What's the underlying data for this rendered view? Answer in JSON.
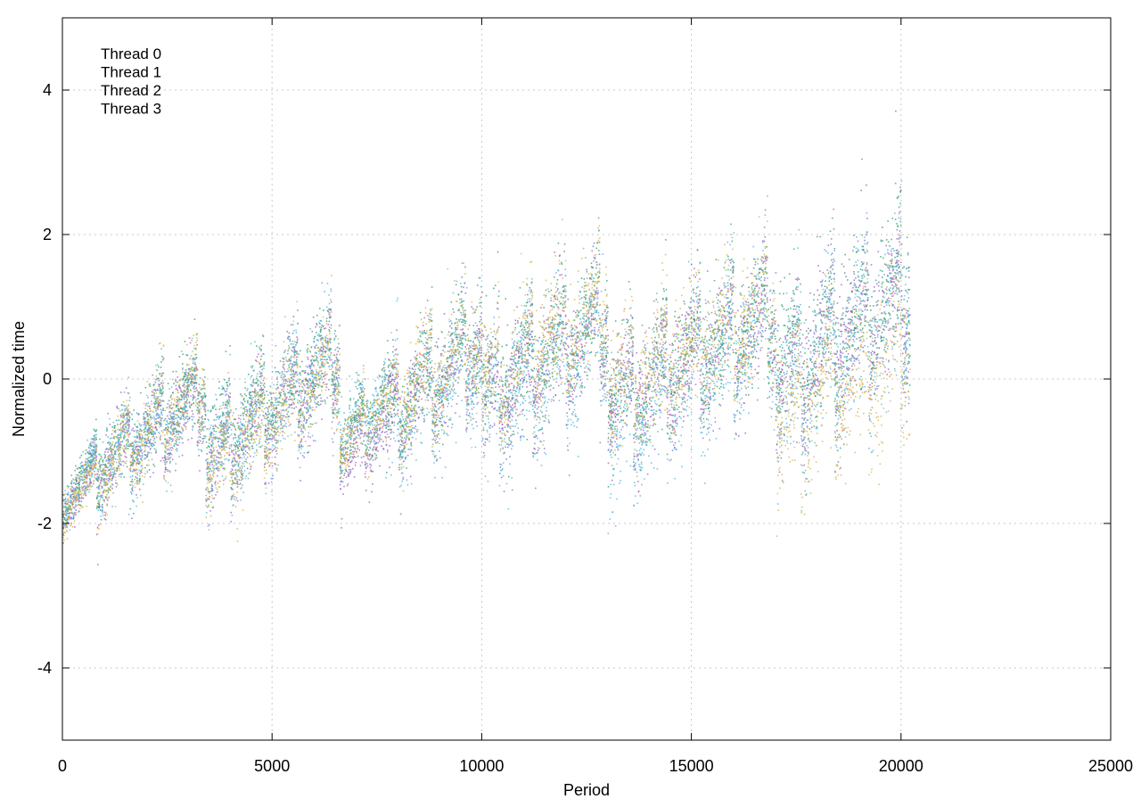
{
  "chart_data": {
    "type": "scatter",
    "title": "",
    "xlabel": "Period",
    "ylabel": "Normalized time",
    "xlim": [
      0,
      25000
    ],
    "ylim": [
      -5,
      5
    ],
    "x_ticks": [
      0,
      5000,
      10000,
      15000,
      20000,
      25000
    ],
    "y_ticks": [
      -4,
      -2,
      0,
      2,
      4
    ],
    "x_tick_labels": [
      "0",
      "5000",
      "10000",
      "15000",
      "20000",
      "25000"
    ],
    "y_tick_labels": [
      "-4",
      "-2",
      "0",
      "2",
      "4"
    ],
    "grid": true,
    "legend_position": "top-left",
    "series": [
      {
        "name": "Thread 0",
        "color": "#9b59c6",
        "summary": {
          "x_range": [
            0,
            20200
          ],
          "segments": [
            {
              "x_start": 0,
              "x_end": 800,
              "y_start": -1.8,
              "y_end": -1.2,
              "spread": 0.35
            },
            {
              "x_start": 800,
              "x_end": 3400,
              "y_start": -1.3,
              "y_end": -0.2,
              "spread": 0.6
            },
            {
              "x_start": 3400,
              "x_end": 6600,
              "y_start": -1.2,
              "y_end": 0.3,
              "spread": 0.7
            },
            {
              "x_start": 6600,
              "x_end": 7700,
              "y_start": -1.2,
              "y_end": -0.6,
              "spread": 0.5
            },
            {
              "x_start": 7700,
              "x_end": 10000,
              "y_start": -0.6,
              "y_end": 0.5,
              "spread": 0.8
            },
            {
              "x_start": 10000,
              "x_end": 13000,
              "y_start": -0.3,
              "y_end": 0.8,
              "spread": 0.9
            },
            {
              "x_start": 13000,
              "x_end": 17000,
              "y_start": -0.4,
              "y_end": 0.9,
              "spread": 0.9
            },
            {
              "x_start": 17000,
              "x_end": 20200,
              "y_start": 0.0,
              "y_end": 1.2,
              "spread": 1.1
            }
          ]
        }
      },
      {
        "name": "Thread 1",
        "color": "#2a9d6f",
        "summary": {
          "x_range": [
            0,
            20200
          ],
          "segments": [
            {
              "x_start": 0,
              "x_end": 800,
              "y_start": -1.7,
              "y_end": -1.1,
              "spread": 0.35
            },
            {
              "x_start": 800,
              "x_end": 3400,
              "y_start": -1.2,
              "y_end": -0.1,
              "spread": 0.6
            },
            {
              "x_start": 3400,
              "x_end": 6600,
              "y_start": -1.0,
              "y_end": 0.4,
              "spread": 0.7
            },
            {
              "x_start": 6600,
              "x_end": 7700,
              "y_start": -0.9,
              "y_end": -0.3,
              "spread": 0.5
            },
            {
              "x_start": 7700,
              "x_end": 10000,
              "y_start": -0.5,
              "y_end": 0.6,
              "spread": 0.8
            },
            {
              "x_start": 10000,
              "x_end": 13000,
              "y_start": -0.2,
              "y_end": 0.9,
              "spread": 0.9
            },
            {
              "x_start": 13000,
              "x_end": 17000,
              "y_start": -0.3,
              "y_end": 1.0,
              "spread": 0.9
            },
            {
              "x_start": 17000,
              "x_end": 20200,
              "y_start": 0.1,
              "y_end": 1.3,
              "spread": 1.1
            }
          ]
        }
      },
      {
        "name": "Thread 2",
        "color": "#4fb3e0",
        "summary": {
          "x_range": [
            0,
            20200
          ],
          "segments": [
            {
              "x_start": 0,
              "x_end": 800,
              "y_start": -1.7,
              "y_end": -1.2,
              "spread": 0.35
            },
            {
              "x_start": 800,
              "x_end": 3400,
              "y_start": -1.2,
              "y_end": -0.2,
              "spread": 0.6
            },
            {
              "x_start": 3400,
              "x_end": 6600,
              "y_start": -1.1,
              "y_end": 0.3,
              "spread": 0.8
            },
            {
              "x_start": 6600,
              "x_end": 7700,
              "y_start": -0.8,
              "y_end": -0.2,
              "spread": 0.6
            },
            {
              "x_start": 7700,
              "x_end": 10000,
              "y_start": -0.7,
              "y_end": 0.4,
              "spread": 0.9
            },
            {
              "x_start": 10000,
              "x_end": 13000,
              "y_start": -0.5,
              "y_end": 0.8,
              "spread": 1.0
            },
            {
              "x_start": 13000,
              "x_end": 17000,
              "y_start": -0.7,
              "y_end": 0.8,
              "spread": 1.0
            },
            {
              "x_start": 17000,
              "x_end": 20200,
              "y_start": -0.2,
              "y_end": 1.0,
              "spread": 1.2
            }
          ]
        }
      },
      {
        "name": "Thread 3",
        "color": "#d8b04a",
        "summary": {
          "x_range": [
            0,
            20200
          ],
          "segments": [
            {
              "x_start": 0,
              "x_end": 800,
              "y_start": -1.8,
              "y_end": -1.3,
              "spread": 0.35
            },
            {
              "x_start": 800,
              "x_end": 3400,
              "y_start": -1.3,
              "y_end": -0.1,
              "spread": 0.6
            },
            {
              "x_start": 3400,
              "x_end": 6600,
              "y_start": -1.3,
              "y_end": 0.3,
              "spread": 0.7
            },
            {
              "x_start": 6600,
              "x_end": 7700,
              "y_start": -1.0,
              "y_end": -0.3,
              "spread": 0.5
            },
            {
              "x_start": 7700,
              "x_end": 10000,
              "y_start": -0.5,
              "y_end": 0.6,
              "spread": 0.8
            },
            {
              "x_start": 10000,
              "x_end": 13000,
              "y_start": -0.1,
              "y_end": 1.0,
              "spread": 0.9
            },
            {
              "x_start": 13000,
              "x_end": 17000,
              "y_start": -0.2,
              "y_end": 1.0,
              "spread": 0.9
            },
            {
              "x_start": 17000,
              "x_end": 20200,
              "y_start": -0.6,
              "y_end": 0.5,
              "spread": 1.1
            }
          ]
        }
      }
    ]
  }
}
